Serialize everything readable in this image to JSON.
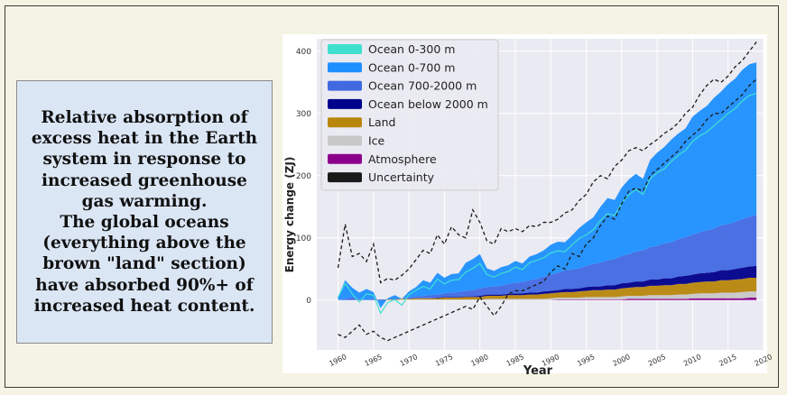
{
  "caption": {
    "lines": [
      "Relative absorption of",
      "excess heat in the Earth",
      "system in response to",
      "increased greenhouse",
      "gas warming.",
      "The global oceans",
      "(everything above the",
      "brown \"land\" section)",
      "have absorbed 90%+ of",
      "increased heat content."
    ]
  },
  "chart_data": {
    "type": "area",
    "title": "",
    "xlabel": "Year",
    "ylabel": "Energy change (ZJ)",
    "xlim": [
      1957,
      2020
    ],
    "ylim": [
      -80,
      420
    ],
    "xticks": [
      "1960",
      "1965",
      "1970",
      "1975",
      "1980",
      "1985",
      "1990",
      "1995",
      "2000",
      "2005",
      "2010",
      "2015",
      "2020"
    ],
    "yticks": [
      "0",
      "100",
      "200",
      "300",
      "400"
    ],
    "grid": true,
    "legend_position": "top-left",
    "x": [
      1960,
      1961,
      1962,
      1963,
      1964,
      1965,
      1966,
      1967,
      1968,
      1969,
      1970,
      1971,
      1972,
      1973,
      1974,
      1975,
      1976,
      1977,
      1978,
      1979,
      1980,
      1981,
      1982,
      1983,
      1984,
      1985,
      1986,
      1987,
      1988,
      1989,
      1990,
      1991,
      1992,
      1993,
      1994,
      1995,
      1996,
      1997,
      1998,
      1999,
      2000,
      2001,
      2002,
      2003,
      2004,
      2005,
      2006,
      2007,
      2008,
      2009,
      2010,
      2011,
      2012,
      2013,
      2014,
      2015,
      2016,
      2017,
      2018,
      2019
    ],
    "series": [
      {
        "name": "Atmosphere",
        "color": "#8b008b",
        "values": [
          0,
          0,
          0,
          0,
          0,
          0,
          0,
          0,
          0,
          0,
          0,
          0,
          0,
          0,
          0,
          0,
          0,
          0,
          0,
          0,
          0,
          0,
          0,
          0,
          0,
          0,
          0,
          0,
          0,
          0,
          0,
          1,
          1,
          1,
          1,
          1,
          1,
          1,
          1,
          1,
          1,
          2,
          2,
          2,
          2,
          2,
          2,
          2,
          2,
          2,
          3,
          3,
          3,
          3,
          3,
          3,
          3,
          3,
          4,
          4
        ]
      },
      {
        "name": "Ice",
        "color": "#c8c8c8",
        "values": [
          0,
          0,
          0,
          0,
          0,
          0,
          0,
          0,
          0,
          1,
          1,
          1,
          1,
          1,
          1,
          1,
          1,
          1,
          1,
          1,
          1,
          2,
          2,
          2,
          2,
          2,
          2,
          2,
          2,
          2,
          3,
          3,
          3,
          3,
          3,
          4,
          4,
          4,
          4,
          4,
          5,
          5,
          5,
          5,
          6,
          6,
          6,
          6,
          7,
          7,
          7,
          8,
          8,
          8,
          9,
          9,
          9,
          10,
          10,
          10
        ]
      },
      {
        "name": "Land",
        "color": "#b8860b",
        "values": [
          0,
          0,
          0,
          0,
          0,
          0,
          1,
          1,
          1,
          1,
          1,
          2,
          2,
          2,
          2,
          3,
          3,
          3,
          4,
          4,
          4,
          5,
          5,
          5,
          6,
          6,
          6,
          7,
          7,
          8,
          8,
          8,
          9,
          9,
          10,
          10,
          11,
          11,
          12,
          12,
          13,
          13,
          14,
          14,
          15,
          15,
          16,
          16,
          17,
          17,
          18,
          18,
          19,
          19,
          20,
          20,
          21,
          21,
          22,
          22
        ]
      },
      {
        "name": "Ocean below 2000 m",
        "color": "#00008b",
        "values": [
          0,
          0,
          0,
          0,
          0,
          0,
          0,
          0,
          0,
          0,
          0,
          0,
          0,
          0,
          1,
          1,
          1,
          1,
          1,
          1,
          2,
          2,
          2,
          2,
          2,
          3,
          3,
          3,
          3,
          4,
          4,
          4,
          5,
          5,
          5,
          6,
          6,
          6,
          7,
          7,
          8,
          8,
          9,
          9,
          10,
          10,
          11,
          11,
          12,
          13,
          13,
          14,
          14,
          15,
          16,
          16,
          17,
          18,
          18,
          19
        ]
      },
      {
        "name": "Ocean 700-2000 m",
        "color": "#4169e1",
        "values": [
          0,
          2,
          5,
          2,
          0,
          3,
          -2,
          0,
          2,
          0,
          2,
          3,
          4,
          5,
          5,
          6,
          7,
          8,
          9,
          10,
          12,
          12,
          13,
          14,
          16,
          17,
          18,
          20,
          22,
          24,
          26,
          28,
          30,
          31,
          32,
          34,
          36,
          38,
          40,
          42,
          44,
          46,
          48,
          50,
          52,
          54,
          56,
          58,
          60,
          62,
          64,
          66,
          68,
          70,
          72,
          74,
          76,
          78,
          80,
          82
        ]
      },
      {
        "name": "Ocean 0-700 m",
        "color": "#1e90ff",
        "values": [
          5,
          30,
          15,
          10,
          18,
          10,
          -12,
          2,
          5,
          0,
          10,
          15,
          25,
          20,
          35,
          25,
          30,
          30,
          45,
          50,
          55,
          30,
          25,
          30,
          30,
          35,
          30,
          38,
          40,
          42,
          48,
          50,
          45,
          55,
          65,
          70,
          75,
          90,
          100,
          95,
          110,
          120,
          125,
          115,
          140,
          150,
          155,
          165,
          170,
          175,
          190,
          195,
          200,
          210,
          215,
          225,
          230,
          240,
          245,
          245
        ]
      },
      {
        "name": "Ocean 0-300 m",
        "color": "#40e0d0",
        "values": [
          5,
          25,
          5,
          -5,
          10,
          5,
          -20,
          -5,
          -2,
          -10,
          5,
          10,
          15,
          10,
          25,
          15,
          20,
          20,
          30,
          35,
          40,
          20,
          15,
          20,
          20,
          25,
          20,
          28,
          30,
          30,
          35,
          35,
          30,
          40,
          48,
          50,
          55,
          68,
          75,
          70,
          85,
          95,
          100,
          90,
          110,
          118,
          120,
          130,
          135,
          140,
          150,
          155,
          158,
          165,
          170,
          178,
          182,
          190,
          195,
          195
        ]
      },
      {
        "name": "Uncertainty",
        "color": "#1a1a1a",
        "upper": [
          52,
          122,
          70,
          75,
          62,
          90,
          28,
          35,
          32,
          40,
          50,
          65,
          80,
          75,
          105,
          90,
          118,
          105,
          100,
          145,
          125,
          95,
          90,
          115,
          110,
          115,
          110,
          120,
          118,
          125,
          125,
          130,
          140,
          145,
          160,
          170,
          190,
          200,
          195,
          215,
          225,
          240,
          245,
          240,
          250,
          258,
          268,
          275,
          285,
          300,
          310,
          330,
          345,
          355,
          350,
          360,
          375,
          385,
          400,
          415
        ],
        "lower": [
          -55,
          -60,
          -50,
          -40,
          -55,
          -50,
          -60,
          -65,
          -60,
          -55,
          -50,
          -45,
          -40,
          -35,
          -30,
          -25,
          -20,
          -15,
          -10,
          -15,
          5,
          -10,
          -25,
          -10,
          10,
          15,
          15,
          20,
          25,
          30,
          45,
          55,
          50,
          75,
          70,
          90,
          100,
          120,
          135,
          130,
          155,
          175,
          180,
          175,
          200,
          210,
          220,
          230,
          240,
          255,
          265,
          275,
          290,
          300,
          300,
          310,
          320,
          330,
          345,
          355
        ]
      }
    ]
  }
}
